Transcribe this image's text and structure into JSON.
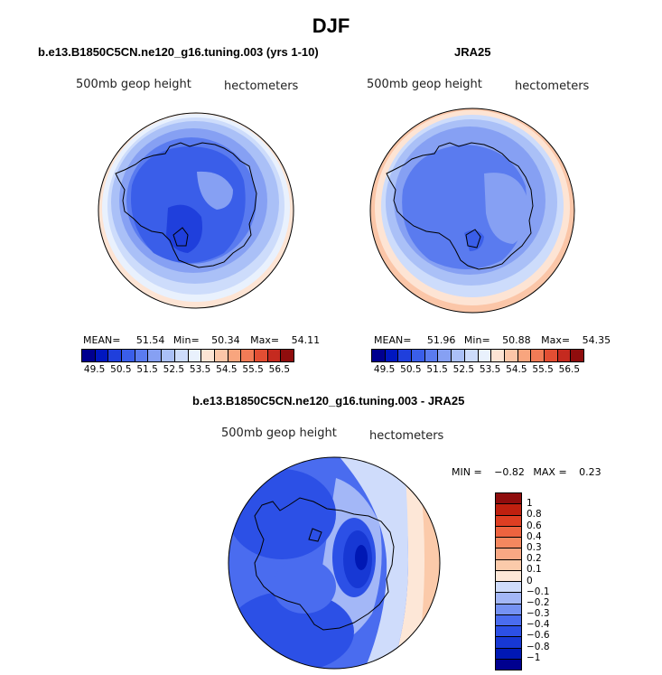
{
  "figure": {
    "season": "DJF",
    "colors": {
      "abs_scale": [
        "#00008f",
        "#0017c0",
        "#1f3fdc",
        "#3a5ee9",
        "#5a7bef",
        "#86a0f3",
        "#aac0f7",
        "#cddcfb",
        "#e9f1fd",
        "#fde4d4",
        "#fbc6a8",
        "#f8a57e",
        "#f27b56",
        "#e34e33",
        "#c52a1f",
        "#8f0d0d"
      ],
      "diff_scale": [
        "#00008f",
        "#0018b4",
        "#1738d4",
        "#2c50e6",
        "#4a6cef",
        "#7592f3",
        "#a3b7f7",
        "#cfdcfb",
        "#fde7d7",
        "#fbcaaa",
        "#f8a884",
        "#f5885f",
        "#ee633f",
        "#de3e22",
        "#bf200f",
        "#8f0d0d"
      ],
      "coast": "#000000"
    },
    "panels": [
      {
        "title": "b.e13.B1850C5CN.ne120_g16.tuning.003 (yrs 1-10)",
        "variable": "500mb geop height",
        "units": "hectometers",
        "stats": {
          "mean_label": "MEAN=",
          "mean": "51.54",
          "min_label": "Min=",
          "min": "50.34",
          "max_label": "Max=",
          "max": "54.11"
        },
        "colorbar_ticks": [
          "49.5",
          "50.5",
          "51.5",
          "52.5",
          "53.5",
          "54.5",
          "55.5",
          "56.5"
        ]
      },
      {
        "title": "JRA25",
        "variable": "500mb geop height",
        "units": "hectometers",
        "stats": {
          "mean_label": "MEAN=",
          "mean": "51.96",
          "min_label": "Min=",
          "min": "50.88",
          "max_label": "Max=",
          "max": "54.35"
        },
        "colorbar_ticks": [
          "49.5",
          "50.5",
          "51.5",
          "52.5",
          "53.5",
          "54.5",
          "55.5",
          "56.5"
        ]
      }
    ],
    "difference": {
      "title": "b.e13.B1850C5CN.ne120_g16.tuning.003 - JRA25",
      "variable": "500mb geop height",
      "units": "hectometers",
      "stats": {
        "min_label": "MIN =",
        "min": "−0.82",
        "max_label": "MAX =",
        "max": "0.23"
      },
      "colorbar_levels": [
        "1",
        "0.8",
        "0.6",
        "0.4",
        "0.3",
        "0.2",
        "0.1",
        "0",
        "−0.1",
        "−0.2",
        "−0.3",
        "−0.4",
        "−0.6",
        "−0.8",
        "−1"
      ]
    }
  }
}
